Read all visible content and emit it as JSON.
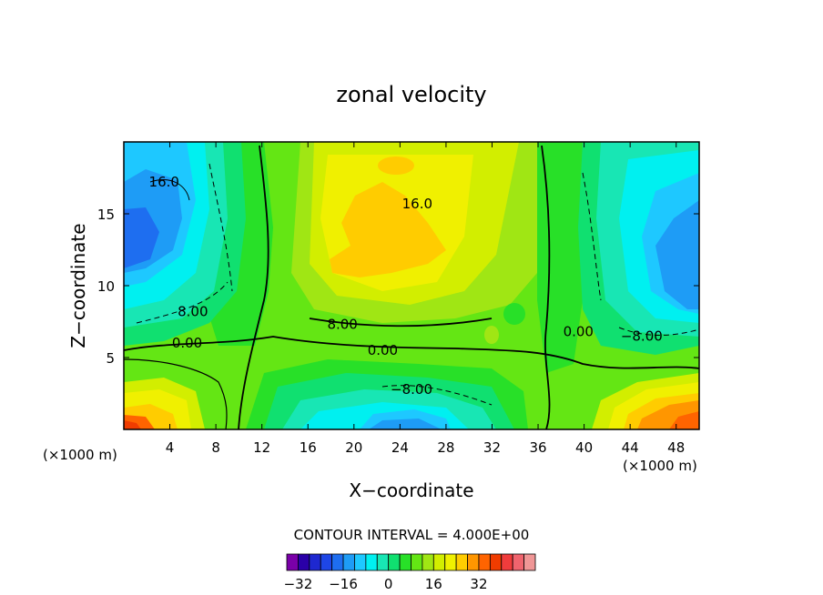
{
  "chart_data": {
    "type": "contour",
    "title": "zonal velocity",
    "xlabel": "X−coordinate",
    "ylabel": "Z−coordinate",
    "x_unit_left": "(×1000 m)",
    "x_unit_right": "(×1000 m)",
    "xlim": [
      0,
      50
    ],
    "ylim": [
      0,
      20
    ],
    "x_ticks": [
      4,
      8,
      12,
      16,
      20,
      24,
      28,
      32,
      36,
      40,
      44,
      48
    ],
    "y_ticks": [
      5,
      10,
      15
    ],
    "contour_interval_text": "CONTOUR INTERVAL = 4.000E+00",
    "contour_labels": [
      {
        "text": "16.0",
        "x": 3.5,
        "z": 17.2
      },
      {
        "text": "16.0",
        "x": 25.5,
        "z": 15.7
      },
      {
        "text": "8.00",
        "x": 6.0,
        "z": 8.2
      },
      {
        "text": "0.00",
        "x": 5.5,
        "z": 6.0
      },
      {
        "text": "8.00",
        "x": 19.0,
        "z": 7.3
      },
      {
        "text": "0.00",
        "x": 22.5,
        "z": 5.5
      },
      {
        "text": "−8.00",
        "x": 25.0,
        "z": 2.8
      },
      {
        "text": "0.00",
        "x": 39.5,
        "z": 6.8
      },
      {
        "text": "−8.00",
        "x": 45.0,
        "z": 6.5
      }
    ],
    "colorbar": {
      "colors": [
        "#7a00a8",
        "#2a00a8",
        "#1e28d0",
        "#1e46e6",
        "#1e6ef0",
        "#1e9cf6",
        "#1ec8ff",
        "#00f0f0",
        "#18e6b4",
        "#10e070",
        "#28e028",
        "#64e614",
        "#a0e614",
        "#d2ee00",
        "#f0f000",
        "#ffcc00",
        "#ff9600",
        "#ff6400",
        "#f03c00",
        "#f03c3c",
        "#f0646e",
        "#f09696"
      ],
      "ticks": [
        "−32",
        "−16",
        "0",
        "16",
        "32"
      ]
    }
  }
}
